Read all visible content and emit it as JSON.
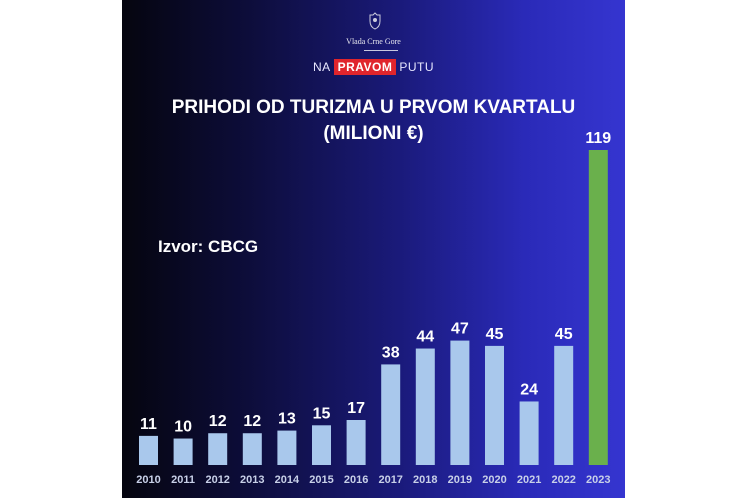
{
  "header": {
    "logo_text": "Vlada Crne Gore",
    "slogan": {
      "pre": "NA",
      "highlight": "PRAVOM",
      "post": "PUTU"
    },
    "highlight_color": "#e0252c"
  },
  "source": "Izvor: CBCG",
  "chart_data": {
    "type": "bar",
    "title": "PRIHODI OD TURIZMA U PRVOM KVARTALU",
    "subtitle": "(MILIONI €)",
    "categories": [
      "2010",
      "2011",
      "2012",
      "2013",
      "2014",
      "2015",
      "2016",
      "2017",
      "2018",
      "2019",
      "2020",
      "2021",
      "2022",
      "2023"
    ],
    "values": [
      11,
      10,
      12,
      12,
      13,
      15,
      17,
      38,
      44,
      47,
      45,
      24,
      45,
      119
    ],
    "data_labels": true,
    "grid": false,
    "ylim": [
      0,
      119
    ],
    "colors": {
      "default": "#a9c8ec",
      "highlight": "#6ab04c"
    },
    "highlight_category": "2023"
  }
}
